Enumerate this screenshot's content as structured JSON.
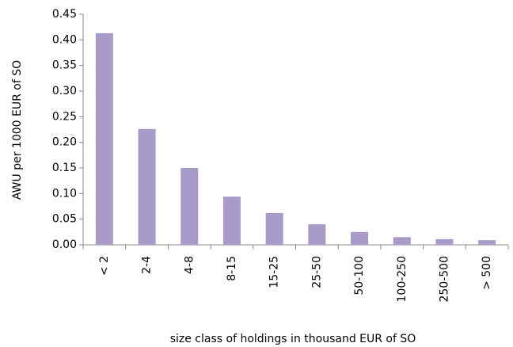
{
  "chart_data": {
    "type": "bar",
    "y_label": "AWU per 1000 EUR of SO",
    "x_label": "size class of holdings in thousand EUR of SO",
    "categories": [
      "< 2",
      "2-4",
      "4-8",
      "8-15",
      "15-25",
      "25-50",
      "50-100",
      "100-250",
      "250-500",
      "> 500"
    ],
    "values": [
      0.413,
      0.226,
      0.15,
      0.094,
      0.062,
      0.04,
      0.025,
      0.015,
      0.011,
      0.009
    ],
    "color": "#a99bc9",
    "ylim": [
      0,
      0.45
    ],
    "yticks": [
      {
        "value": 0,
        "label": "0.00"
      },
      0.05,
      {
        "value": 0.1,
        "label": "0.10"
      },
      0.15,
      {
        "value": 0.2,
        "label": "0.20"
      },
      0.25,
      {
        "value": 0.3,
        "label": "0.30"
      },
      0.35,
      {
        "value": 0.4,
        "label": "0.40"
      },
      0.45
    ],
    "grid": false
  }
}
